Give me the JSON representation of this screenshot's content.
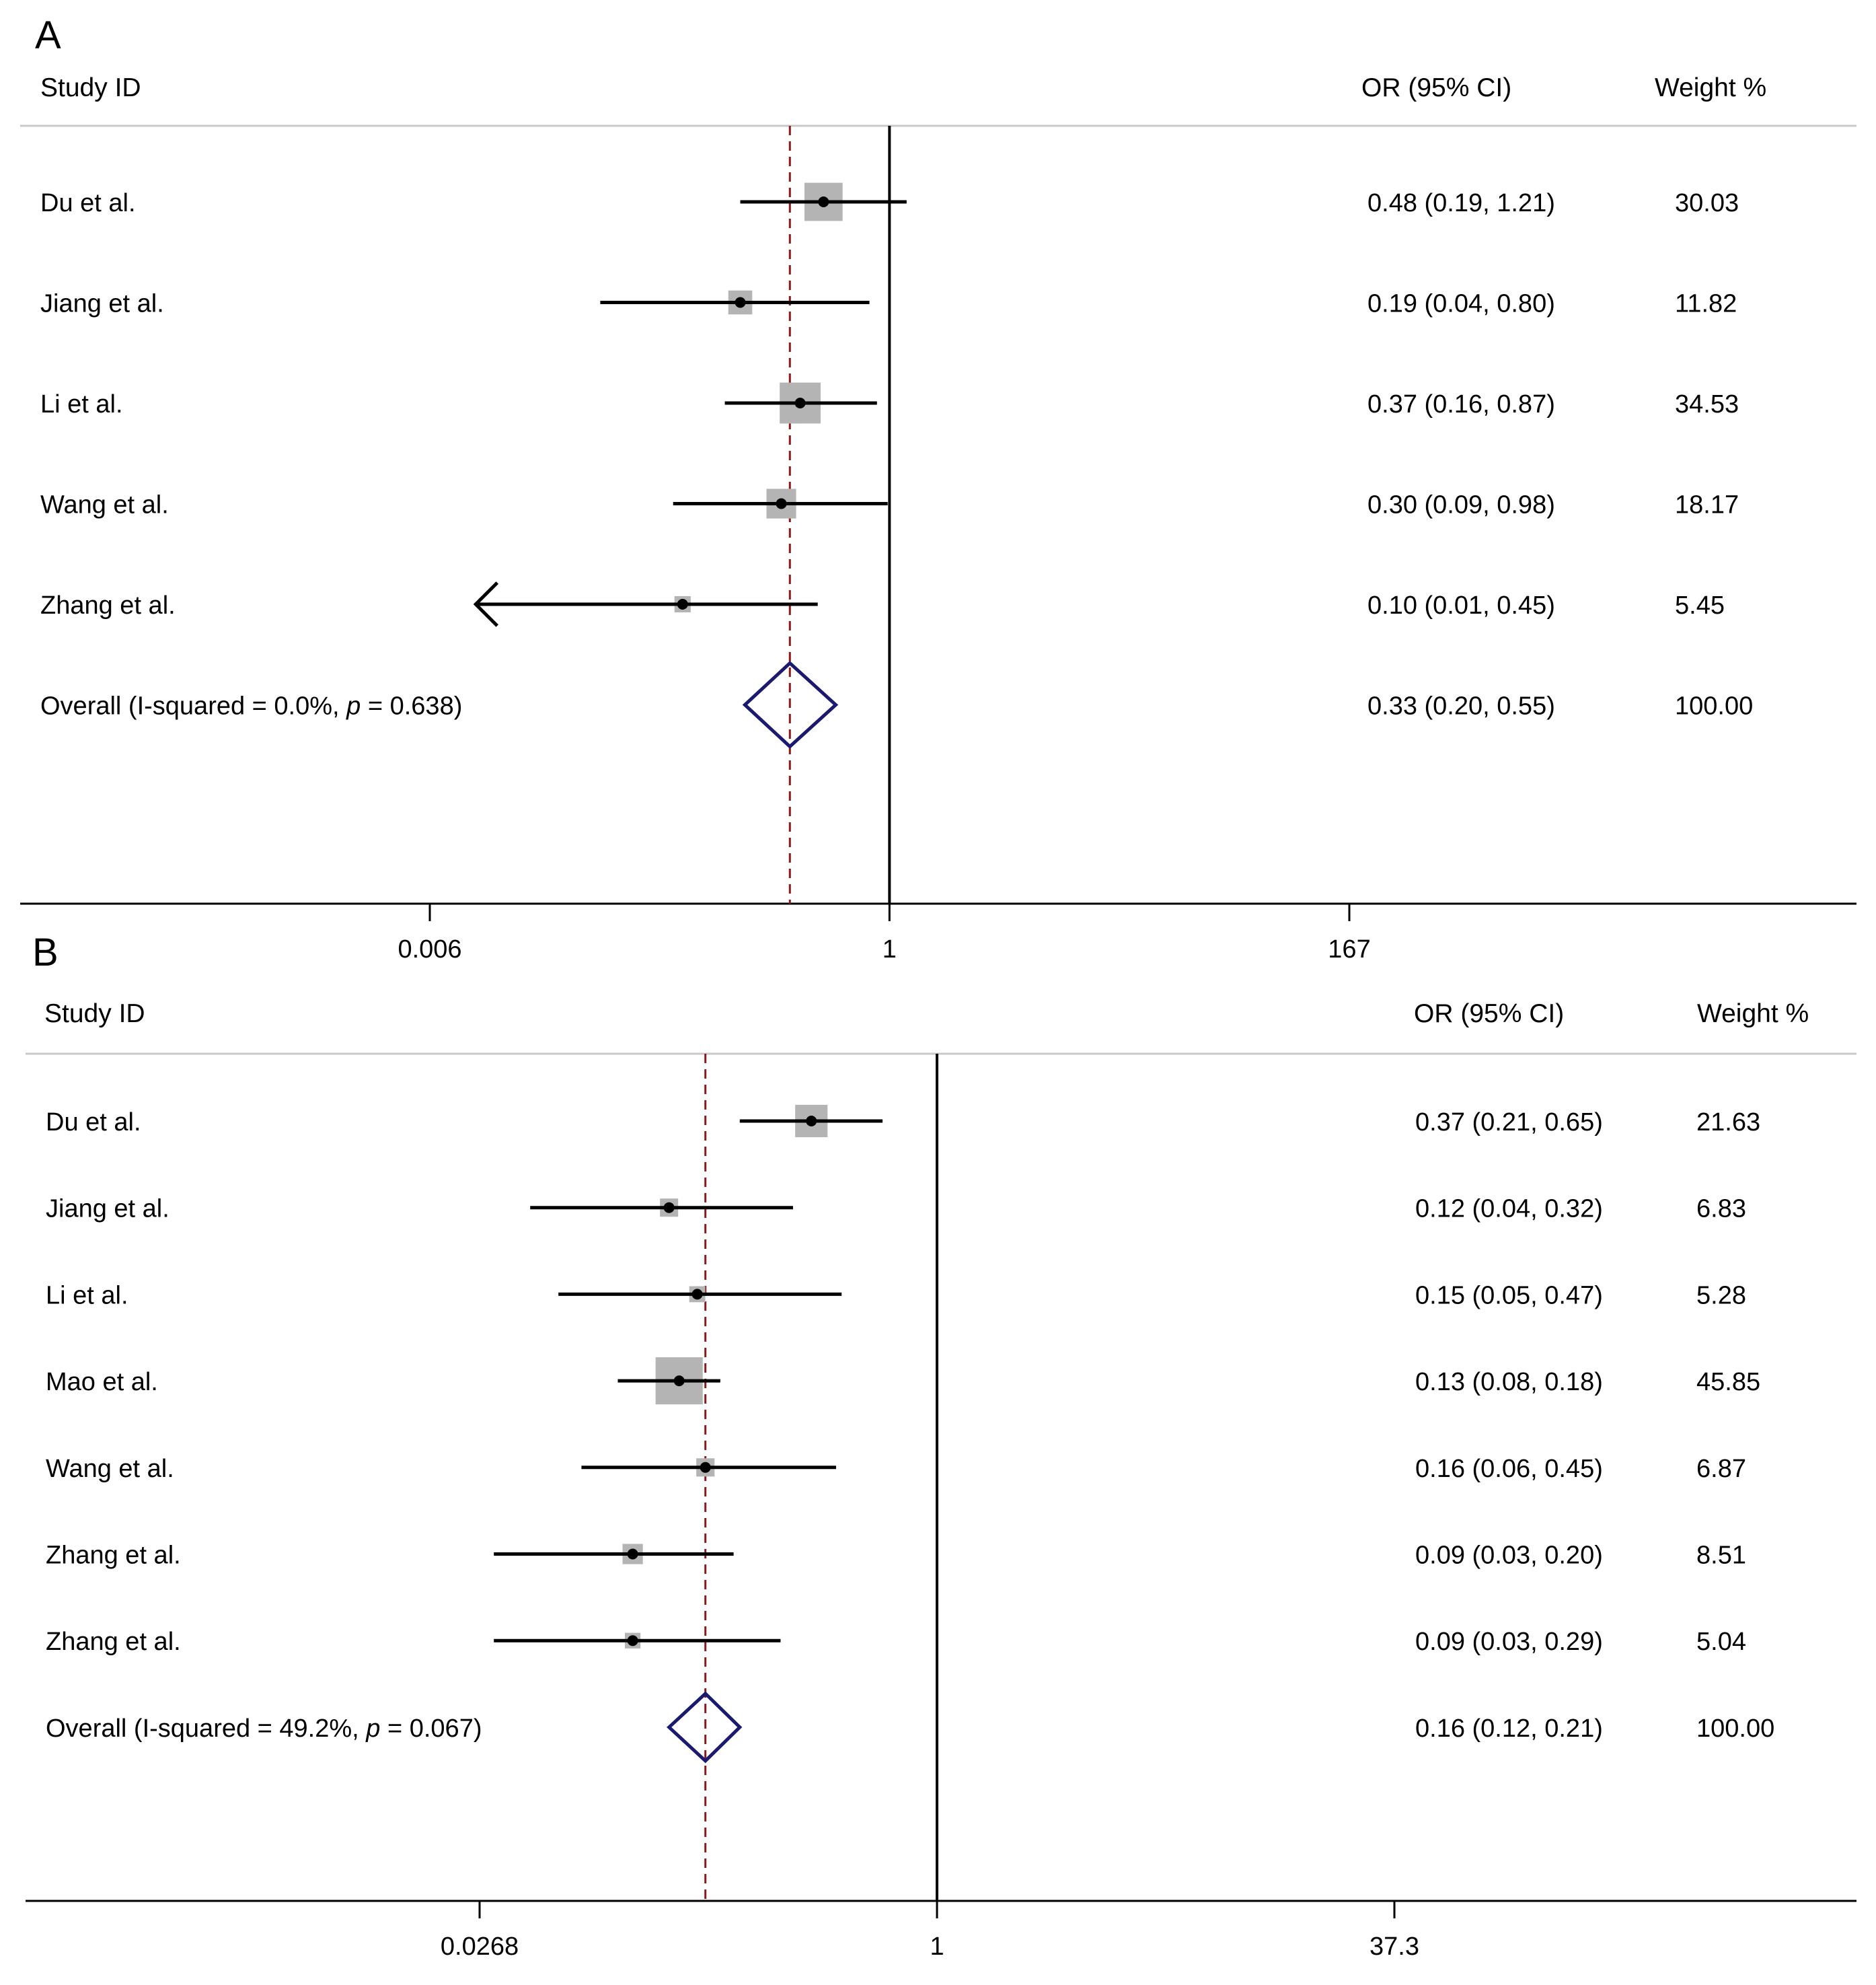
{
  "chart_data": [
    {
      "type": "forest",
      "panel_label": "A",
      "header": {
        "study": "Study ID",
        "or": "OR (95% CI)",
        "weight": "Weight %"
      },
      "xscale": "log",
      "ticks": [
        0.006,
        1,
        167
      ],
      "tick_labels": [
        "0.006",
        "1",
        "167"
      ],
      "xlim": [
        0.006,
        167
      ],
      "null_value": 1,
      "pooled_line": 0.33,
      "rows": [
        {
          "study": "Du et al.",
          "or": 0.48,
          "lo": 0.19,
          "hi": 1.21,
          "weight": 30.03,
          "or_text": "0.48 (0.19, 1.21)",
          "weight_text": "30.03"
        },
        {
          "study": "Jiang et al.",
          "or": 0.19,
          "lo": 0.04,
          "hi": 0.8,
          "weight": 11.82,
          "or_text": "0.19 (0.04, 0.80)",
          "weight_text": "11.82"
        },
        {
          "study": "Li et al.",
          "or": 0.37,
          "lo": 0.16,
          "hi": 0.87,
          "weight": 34.53,
          "or_text": "0.37 (0.16, 0.87)",
          "weight_text": "34.53"
        },
        {
          "study": "Wang et al.",
          "or": 0.3,
          "lo": 0.09,
          "hi": 0.98,
          "weight": 18.17,
          "or_text": "0.30 (0.09, 0.98)",
          "weight_text": "18.17"
        },
        {
          "study": "Zhang et al.",
          "or": 0.1,
          "lo": 0.01,
          "hi": 0.45,
          "weight": 5.45,
          "or_text": "0.10 (0.01, 0.45)",
          "weight_text": "5.45",
          "arrow_left": true
        }
      ],
      "overall": {
        "label": "Overall  (I-squared = 0.0%, ",
        "p_symbol": "p",
        "p_text": " = 0.638)",
        "or": 0.33,
        "lo": 0.2,
        "hi": 0.55,
        "or_text": "0.33 (0.20, 0.55)",
        "weight_text": "100.00"
      }
    },
    {
      "type": "forest",
      "panel_label": "B",
      "header": {
        "study": "Study ID",
        "or": "OR (95% CI)",
        "weight": "Weight %"
      },
      "xscale": "log",
      "ticks": [
        0.0268,
        1,
        37.3
      ],
      "tick_labels": [
        "0.0268",
        "1",
        "37.3"
      ],
      "xlim": [
        0.0268,
        37.3
      ],
      "null_value": 1,
      "pooled_line": 0.16,
      "rows": [
        {
          "study": "Du et al.",
          "or": 0.37,
          "lo": 0.21,
          "hi": 0.65,
          "weight": 21.63,
          "or_text": "0.37 (0.21, 0.65)",
          "weight_text": "21.63"
        },
        {
          "study": "Jiang et al.",
          "or": 0.12,
          "lo": 0.04,
          "hi": 0.32,
          "weight": 6.83,
          "or_text": "0.12 (0.04, 0.32)",
          "weight_text": "6.83"
        },
        {
          "study": "Li et al.",
          "or": 0.15,
          "lo": 0.05,
          "hi": 0.47,
          "weight": 5.28,
          "or_text": "0.15 (0.05, 0.47)",
          "weight_text": "5.28"
        },
        {
          "study": "Mao et al.",
          "or": 0.13,
          "lo": 0.08,
          "hi": 0.18,
          "weight": 45.85,
          "or_text": "0.13 (0.08, 0.18)",
          "weight_text": "45.85"
        },
        {
          "study": "Wang et al.",
          "or": 0.16,
          "lo": 0.06,
          "hi": 0.45,
          "weight": 6.87,
          "or_text": "0.16 (0.06, 0.45)",
          "weight_text": "6.87"
        },
        {
          "study": "Zhang et al.",
          "or": 0.09,
          "lo": 0.03,
          "hi": 0.2,
          "weight": 8.51,
          "or_text": "0.09 (0.03, 0.20)",
          "weight_text": "8.51"
        },
        {
          "study": "Zhang et al.",
          "or": 0.09,
          "lo": 0.03,
          "hi": 0.29,
          "weight": 5.04,
          "or_text": "0.09 (0.03, 0.29)",
          "weight_text": "5.04"
        }
      ],
      "overall": {
        "label": "Overall  (I-squared = 49.2%, ",
        "p_symbol": "p",
        "p_text": " = 0.067)",
        "or": 0.16,
        "lo": 0.12,
        "hi": 0.21,
        "or_text": "0.16 (0.12, 0.21)",
        "weight_text": "100.00"
      }
    }
  ],
  "colors": {
    "text": "#000000",
    "rule": "#c8c8c8",
    "axis": "#000000",
    "ci_line": "#000000",
    "weight_box": "#b4b4b4",
    "pooled_line": "#8b1a1a",
    "diamond": "#1a1a6e"
  }
}
